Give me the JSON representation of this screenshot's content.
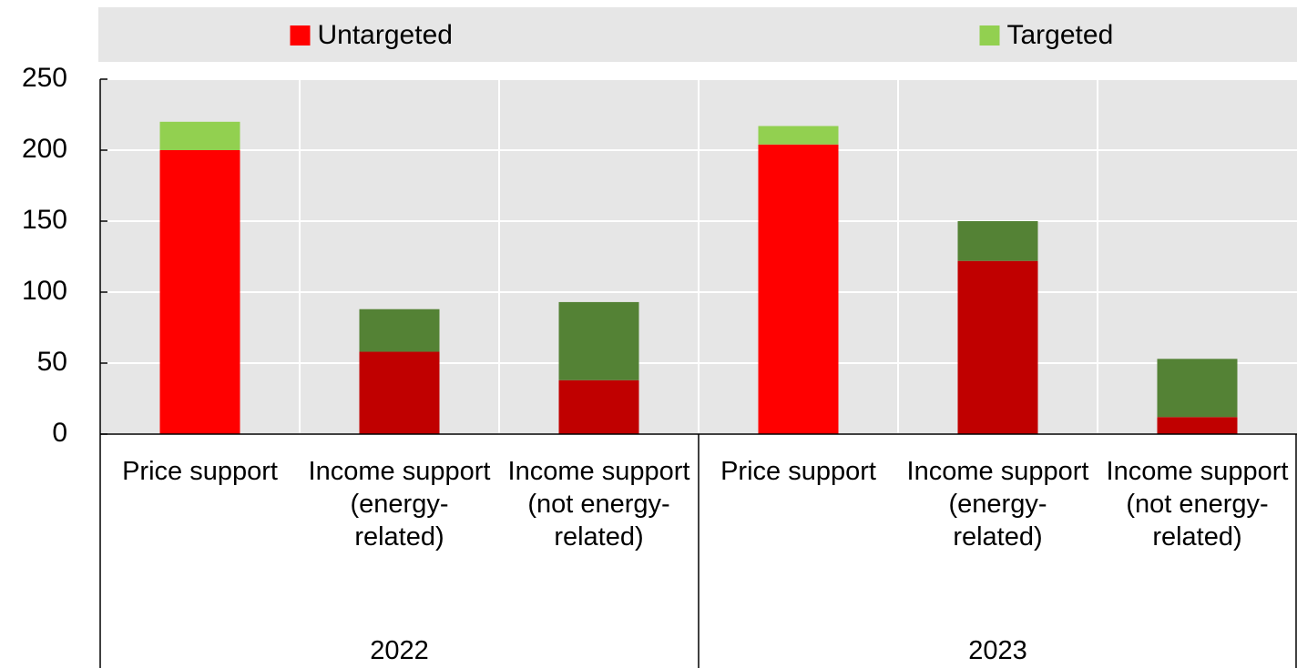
{
  "chart_data": {
    "type": "stacked_bar",
    "categories": [
      "Price support",
      "Income support (energy-related)",
      "Income support (not energy-related)",
      "Price support",
      "Income support (energy-related)",
      "Income support (not energy-related)"
    ],
    "groups": [
      "2022",
      "2023"
    ],
    "series": [
      {
        "name": "Untargeted",
        "color": "#ff0000",
        "colors": [
          "#ff0000",
          "#c00000",
          "#c00000",
          "#ff0000",
          "#c00000",
          "#c00000"
        ],
        "values": [
          200,
          58,
          38,
          204,
          122,
          12
        ]
      },
      {
        "name": "Targeted",
        "color": "#92d050",
        "colors": [
          "#92d050",
          "#548235",
          "#548235",
          "#92d050",
          "#548235",
          "#548235"
        ],
        "values": [
          20,
          30,
          55,
          13,
          28,
          41
        ]
      }
    ],
    "ylim": [
      0,
      250
    ],
    "yticks": [
      0,
      50,
      100,
      150,
      200,
      250
    ],
    "grid": true
  }
}
